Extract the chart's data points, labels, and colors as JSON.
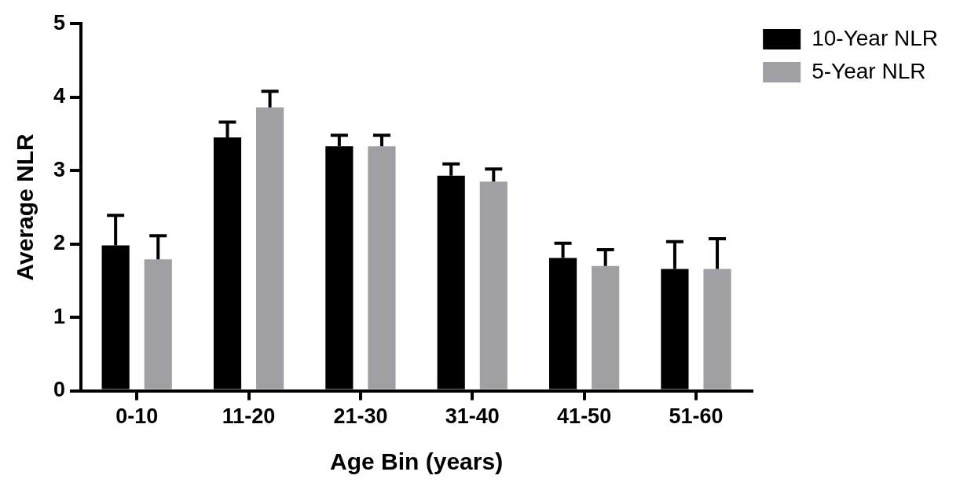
{
  "chart_data": {
    "type": "bar",
    "xlabel": "Age Bin (years)",
    "ylabel": "Average NLR",
    "categories": [
      "0-10",
      "11-20",
      "21-30",
      "31-40",
      "41-50",
      "51-60"
    ],
    "series": [
      {
        "name": "10-Year NLR",
        "color": "#000000",
        "values": [
          1.98,
          3.45,
          3.33,
          2.93,
          1.81,
          1.66
        ],
        "errors": [
          [
            1.98,
            2.39
          ],
          [
            3.45,
            3.66
          ],
          [
            3.33,
            3.48
          ],
          [
            2.93,
            3.09
          ],
          [
            1.81,
            2.01
          ],
          [
            1.66,
            2.03
          ]
        ]
      },
      {
        "name": "5-Year NLR",
        "color": "#a0a0a4",
        "values": [
          1.79,
          3.86,
          3.33,
          2.85,
          1.7,
          1.66
        ],
        "errors": [
          [
            1.79,
            2.11
          ],
          [
            3.86,
            4.08
          ],
          [
            3.33,
            3.48
          ],
          [
            2.85,
            3.02
          ],
          [
            1.7,
            1.92
          ],
          [
            1.66,
            2.07
          ]
        ]
      }
    ],
    "ylim": [
      0,
      5
    ],
    "yticks": [
      0,
      1,
      2,
      3,
      4,
      5
    ],
    "grid": false,
    "legend": "top right"
  }
}
